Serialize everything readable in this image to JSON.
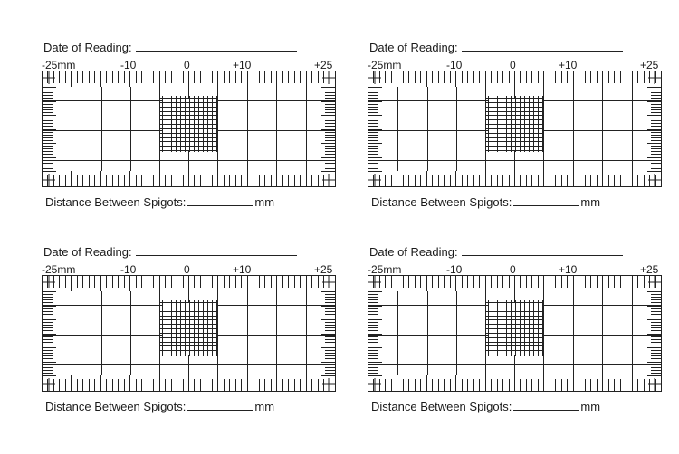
{
  "form": {
    "date_label": "Date of Reading:",
    "scale_labels": [
      "-25mm",
      "-10",
      "0",
      "+10",
      "+25"
    ],
    "distance_label": "Distance Between Spigots:",
    "distance_unit": "mm"
  }
}
